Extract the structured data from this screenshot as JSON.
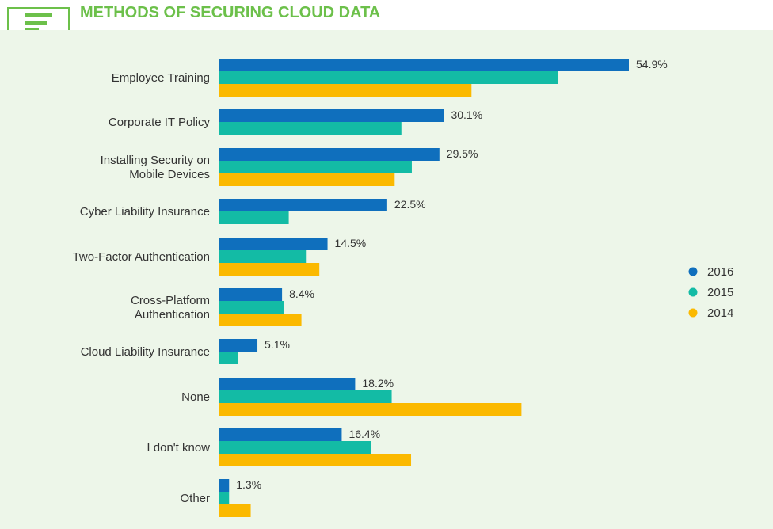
{
  "header": {
    "title": "METHODS OF SECURING CLOUD DATA",
    "icon": "chat-list-icon",
    "accent_color": "#6cc04a"
  },
  "chart_data": {
    "type": "bar",
    "orientation": "horizontal",
    "title": "METHODS OF SECURING CLOUD DATA",
    "xlabel": "",
    "ylabel": "",
    "xlim": [
      0,
      60
    ],
    "grid": false,
    "legend_position": "right",
    "categories": [
      [
        "Employee Training"
      ],
      [
        "Corporate IT Policy"
      ],
      [
        "Installing Security on",
        "Mobile Devices"
      ],
      [
        "Cyber Liability Insurance"
      ],
      [
        "Two-Factor Authentication"
      ],
      [
        "Cross-Platform",
        "Authentication"
      ],
      [
        "Cloud Liability Insurance"
      ],
      [
        "None"
      ],
      [
        "I don't know"
      ],
      [
        "Other"
      ]
    ],
    "data_labels": [
      "54.9%",
      "30.1%",
      "29.5%",
      "22.5%",
      "14.5%",
      "8.4%",
      "5.1%",
      "18.2%",
      "16.4%",
      "1.3%"
    ],
    "series": [
      {
        "name": "2016",
        "color": "#0f6fbd",
        "values": [
          54.9,
          30.1,
          29.5,
          22.5,
          14.5,
          8.4,
          5.1,
          18.2,
          16.4,
          1.3
        ]
      },
      {
        "name": "2015",
        "color": "#13bba5",
        "values": [
          45.4,
          24.4,
          25.8,
          9.3,
          11.6,
          8.6,
          2.5,
          23.1,
          20.3,
          1.3
        ]
      },
      {
        "name": "2014",
        "color": "#fbb900",
        "values": [
          33.8,
          null,
          23.5,
          null,
          13.4,
          11.0,
          null,
          40.5,
          25.7,
          4.2
        ]
      }
    ]
  }
}
